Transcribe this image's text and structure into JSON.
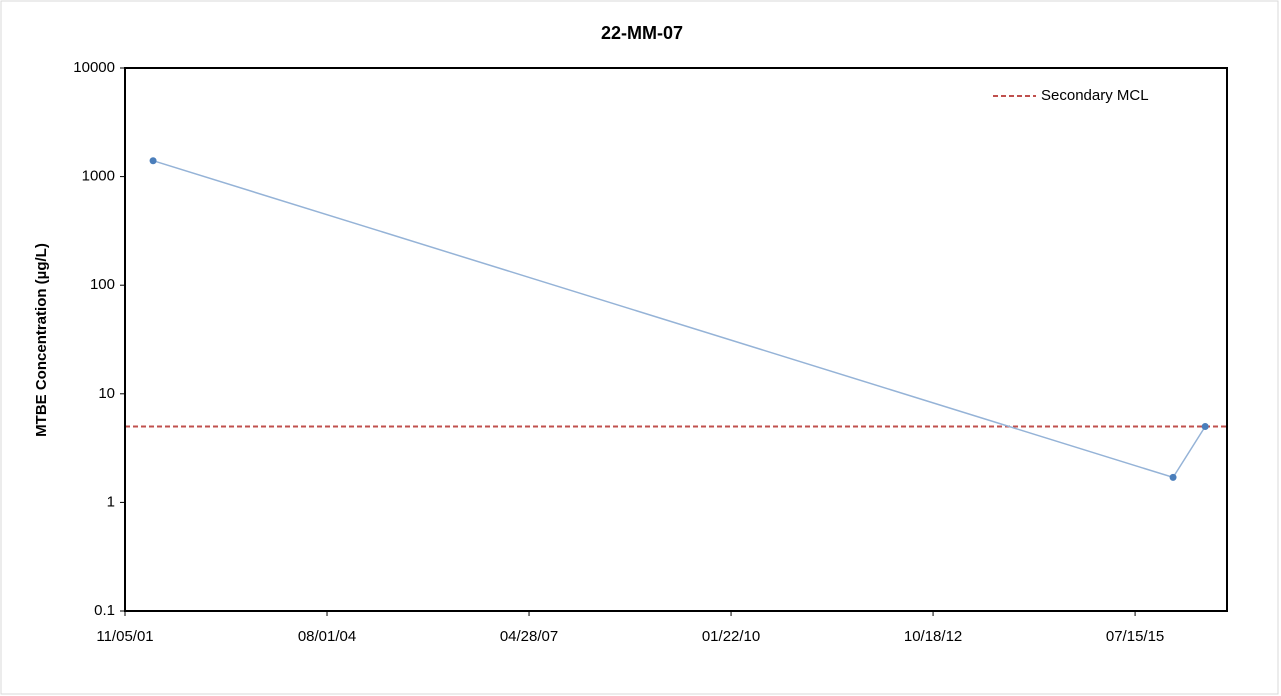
{
  "chart_data": {
    "type": "line",
    "title": "22-MM-07",
    "y_label": "MTBE Concentration (µg/L)",
    "x": [
      "2002-03-24",
      "2016-01-19",
      "2016-06-26"
    ],
    "series": [
      {
        "color": "#95b3d7",
        "marker_color": "#4a7ebb",
        "values": [
          1400,
          1.7,
          5
        ]
      }
    ],
    "reference_lines": [
      {
        "name": "Secondary MCL",
        "value": 5,
        "color": "#c0504d",
        "style": "dashed"
      }
    ],
    "xlim": [
      "2001-11-05",
      "2016-10-12"
    ],
    "xticks": [
      {
        "value": "2001-11-05",
        "label": "11/05/01"
      },
      {
        "value": "2004-08-01",
        "label": "08/01/04"
      },
      {
        "value": "2007-04-28",
        "label": "04/28/07"
      },
      {
        "value": "2010-01-22",
        "label": "01/22/10"
      },
      {
        "value": "2012-10-18",
        "label": "10/18/12"
      },
      {
        "value": "2015-07-15",
        "label": "07/15/15"
      }
    ],
    "ylim": [
      0.1,
      10000
    ],
    "yticks": [
      0.1,
      1,
      10,
      100,
      1000,
      10000
    ],
    "y_scale": "log",
    "grid": false,
    "legend": "upper right"
  }
}
